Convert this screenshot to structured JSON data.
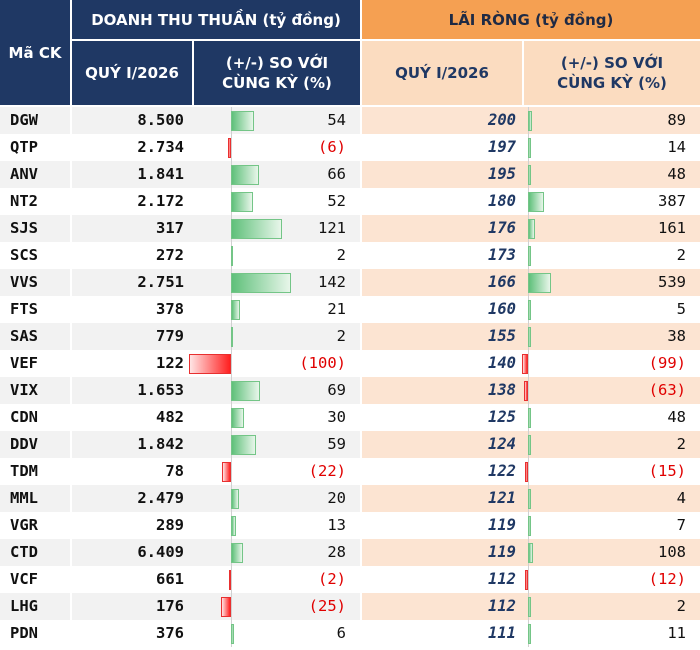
{
  "header": {
    "code_col": "Mã CK",
    "revenue_group": "DOANH THU THUẦN (tỷ đồng)",
    "profit_group": "LÃI RÒNG (tỷ đồng)",
    "revenue_quarter": "QUÝ I/2026",
    "revenue_change": "(+/-) SO VỚI CÙNG KỲ (%)",
    "profit_quarter": "QUÝ I/2026",
    "profit_change": "(+/-) SO VỚI CÙNG KỲ (%)"
  },
  "colors": {
    "navy": "#1f3864",
    "orange": "#f5a052",
    "light_orange": "#fbdcc0",
    "row_stripe_left": "#f2f2f2",
    "row_stripe_right": "#fce4d2",
    "positive": "#5fc07a",
    "negative": "#ff2020"
  },
  "rows": [
    {
      "code": "DGW",
      "revenue": "8.500",
      "revenue_change": "54",
      "revenue_change_value": 54,
      "profit": "200",
      "profit_change": "89",
      "profit_change_value": 89
    },
    {
      "code": "QTP",
      "revenue": "2.734",
      "revenue_change": "(6)",
      "revenue_change_value": -6,
      "profit": "197",
      "profit_change": "14",
      "profit_change_value": 14
    },
    {
      "code": "ANV",
      "revenue": "1.841",
      "revenue_change": "66",
      "revenue_change_value": 66,
      "profit": "195",
      "profit_change": "48",
      "profit_change_value": 48
    },
    {
      "code": "NT2",
      "revenue": "2.172",
      "revenue_change": "52",
      "revenue_change_value": 52,
      "profit": "180",
      "profit_change": "387",
      "profit_change_value": 387
    },
    {
      "code": "SJS",
      "revenue": "317",
      "revenue_change": "121",
      "revenue_change_value": 121,
      "profit": "176",
      "profit_change": "161",
      "profit_change_value": 161
    },
    {
      "code": "SCS",
      "revenue": "272",
      "revenue_change": "2",
      "revenue_change_value": 2,
      "profit": "173",
      "profit_change": "2",
      "profit_change_value": 2
    },
    {
      "code": "VVS",
      "revenue": "2.751",
      "revenue_change": "142",
      "revenue_change_value": 142,
      "profit": "166",
      "profit_change": "539",
      "profit_change_value": 539
    },
    {
      "code": "FTS",
      "revenue": "378",
      "revenue_change": "21",
      "revenue_change_value": 21,
      "profit": "160",
      "profit_change": "5",
      "profit_change_value": 5
    },
    {
      "code": "SAS",
      "revenue": "779",
      "revenue_change": "2",
      "revenue_change_value": 2,
      "profit": "155",
      "profit_change": "38",
      "profit_change_value": 38
    },
    {
      "code": "VEF",
      "revenue": "122",
      "revenue_change": "(100)",
      "revenue_change_value": -100,
      "profit": "140",
      "profit_change": "(99)",
      "profit_change_value": -99
    },
    {
      "code": "VIX",
      "revenue": "1.653",
      "revenue_change": "69",
      "revenue_change_value": 69,
      "profit": "138",
      "profit_change": "(63)",
      "profit_change_value": -63
    },
    {
      "code": "CDN",
      "revenue": "482",
      "revenue_change": "30",
      "revenue_change_value": 30,
      "profit": "125",
      "profit_change": "48",
      "profit_change_value": 48
    },
    {
      "code": "DDV",
      "revenue": "1.842",
      "revenue_change": "59",
      "revenue_change_value": 59,
      "profit": "124",
      "profit_change": "2",
      "profit_change_value": 2
    },
    {
      "code": "TDM",
      "revenue": "78",
      "revenue_change": "(22)",
      "revenue_change_value": -22,
      "profit": "122",
      "profit_change": "(15)",
      "profit_change_value": -15
    },
    {
      "code": "MML",
      "revenue": "2.479",
      "revenue_change": "20",
      "revenue_change_value": 20,
      "profit": "121",
      "profit_change": "4",
      "profit_change_value": 4
    },
    {
      "code": "VGR",
      "revenue": "289",
      "revenue_change": "13",
      "revenue_change_value": 13,
      "profit": "119",
      "profit_change": "7",
      "profit_change_value": 7
    },
    {
      "code": "CTD",
      "revenue": "6.409",
      "revenue_change": "28",
      "revenue_change_value": 28,
      "profit": "119",
      "profit_change": "108",
      "profit_change_value": 108
    },
    {
      "code": "VCF",
      "revenue": "661",
      "revenue_change": "(2)",
      "revenue_change_value": -2,
      "profit": "112",
      "profit_change": "(12)",
      "profit_change_value": -12
    },
    {
      "code": "LHG",
      "revenue": "176",
      "revenue_change": "(25)",
      "revenue_change_value": -25,
      "profit": "112",
      "profit_change": "2",
      "profit_change_value": 2
    },
    {
      "code": "PDN",
      "revenue": "376",
      "revenue_change": "6",
      "revenue_change_value": 6,
      "profit": "111",
      "profit_change": "11",
      "profit_change_value": 11
    }
  ]
}
